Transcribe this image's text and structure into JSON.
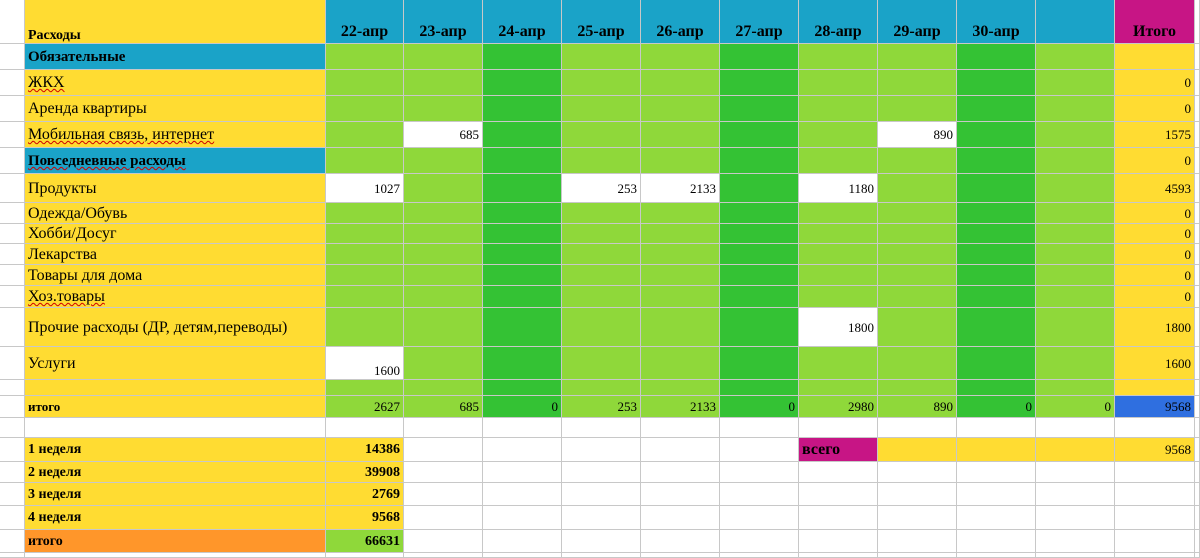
{
  "colors": {
    "yellow": "#ffdc32",
    "teal": "#1aa3c8",
    "light_green": "#8fd83a",
    "dark_green": "#34c234",
    "magenta": "#c71585",
    "blue": "#2f6fe0",
    "orange": "#ff962a",
    "lime": "#8fd83a",
    "white": "#ffffff"
  },
  "header": {
    "title": "Расходы",
    "dates": [
      "22-апр",
      "23-апр",
      "24-апр",
      "25-апр",
      "26-апр",
      "27-апр",
      "28-апр",
      "29-апр",
      "30-апр",
      ""
    ],
    "total_label": "Итого"
  },
  "rows": [
    {
      "label": "Обязательные",
      "type": "section",
      "values": [
        "",
        "",
        "",
        "",
        "",
        "",
        "",
        "",
        "",
        ""
      ],
      "total": ""
    },
    {
      "label": "ЖКХ",
      "type": "item",
      "values": [
        "",
        "",
        "",
        "",
        "",
        "",
        "",
        "",
        "",
        ""
      ],
      "total": "0"
    },
    {
      "label": "Аренда квартиры",
      "type": "item",
      "values": [
        "",
        "",
        "",
        "",
        "",
        "",
        "",
        "",
        "",
        ""
      ],
      "total": "0"
    },
    {
      "label": "Мобильная связь, интернет",
      "type": "item",
      "values": [
        "",
        "685",
        "",
        "",
        "",
        "",
        "",
        "890",
        "",
        ""
      ],
      "total": "1575"
    },
    {
      "label": "Повседневные расходы",
      "type": "section",
      "values": [
        "",
        "",
        "",
        "",
        "",
        "",
        "",
        "",
        "",
        ""
      ],
      "total": "0"
    },
    {
      "label": "Продукты",
      "type": "item",
      "values": [
        "1027",
        "",
        "",
        "253",
        "2133",
        "",
        "1180",
        "",
        "",
        ""
      ],
      "total": "4593"
    },
    {
      "label": "Одежда/Обувь",
      "type": "item",
      "values": [
        "",
        "",
        "",
        "",
        "",
        "",
        "",
        "",
        "",
        ""
      ],
      "total": "0"
    },
    {
      "label": "Хобби/Досуг",
      "type": "item",
      "values": [
        "",
        "",
        "",
        "",
        "",
        "",
        "",
        "",
        "",
        ""
      ],
      "total": "0"
    },
    {
      "label": "Лекарства",
      "type": "item",
      "values": [
        "",
        "",
        "",
        "",
        "",
        "",
        "",
        "",
        "",
        ""
      ],
      "total": "0"
    },
    {
      "label": "Товары для дома",
      "type": "item",
      "values": [
        "",
        "",
        "",
        "",
        "",
        "",
        "",
        "",
        "",
        ""
      ],
      "total": "0"
    },
    {
      "label": "Хоз.товары",
      "type": "item",
      "values": [
        "",
        "",
        "",
        "",
        "",
        "",
        "",
        "",
        "",
        ""
      ],
      "total": "0"
    },
    {
      "label": "Прочие расходы (ДР, детям,переводы)",
      "type": "item",
      "values": [
        "",
        "",
        "",
        "",
        "",
        "",
        "1800",
        "",
        "",
        ""
      ],
      "total": "1800"
    },
    {
      "label": "Услуги",
      "type": "item",
      "values": [
        "1600",
        "",
        "",
        "",
        "",
        "",
        "",
        "",
        "",
        ""
      ],
      "total": "1600"
    },
    {
      "label": "",
      "type": "item",
      "values": [
        "",
        "",
        "",
        "",
        "",
        "",
        "",
        "",
        "",
        ""
      ],
      "total": ""
    },
    {
      "label": "итого",
      "type": "total",
      "values": [
        "2627",
        "685",
        "0",
        "253",
        "2133",
        "0",
        "2980",
        "890",
        "0",
        "0"
      ],
      "total": "9568"
    }
  ],
  "weekly": {
    "rows": [
      {
        "label": "1 неделя",
        "value": "14386"
      },
      {
        "label": "2 неделя",
        "value": "39908"
      },
      {
        "label": "3 неделя",
        "value": "2769"
      },
      {
        "label": "4 неделя",
        "value": "9568"
      },
      {
        "label": "итого",
        "value": "66631"
      }
    ],
    "vsego_label": "всего",
    "vsego_value": "9568"
  }
}
